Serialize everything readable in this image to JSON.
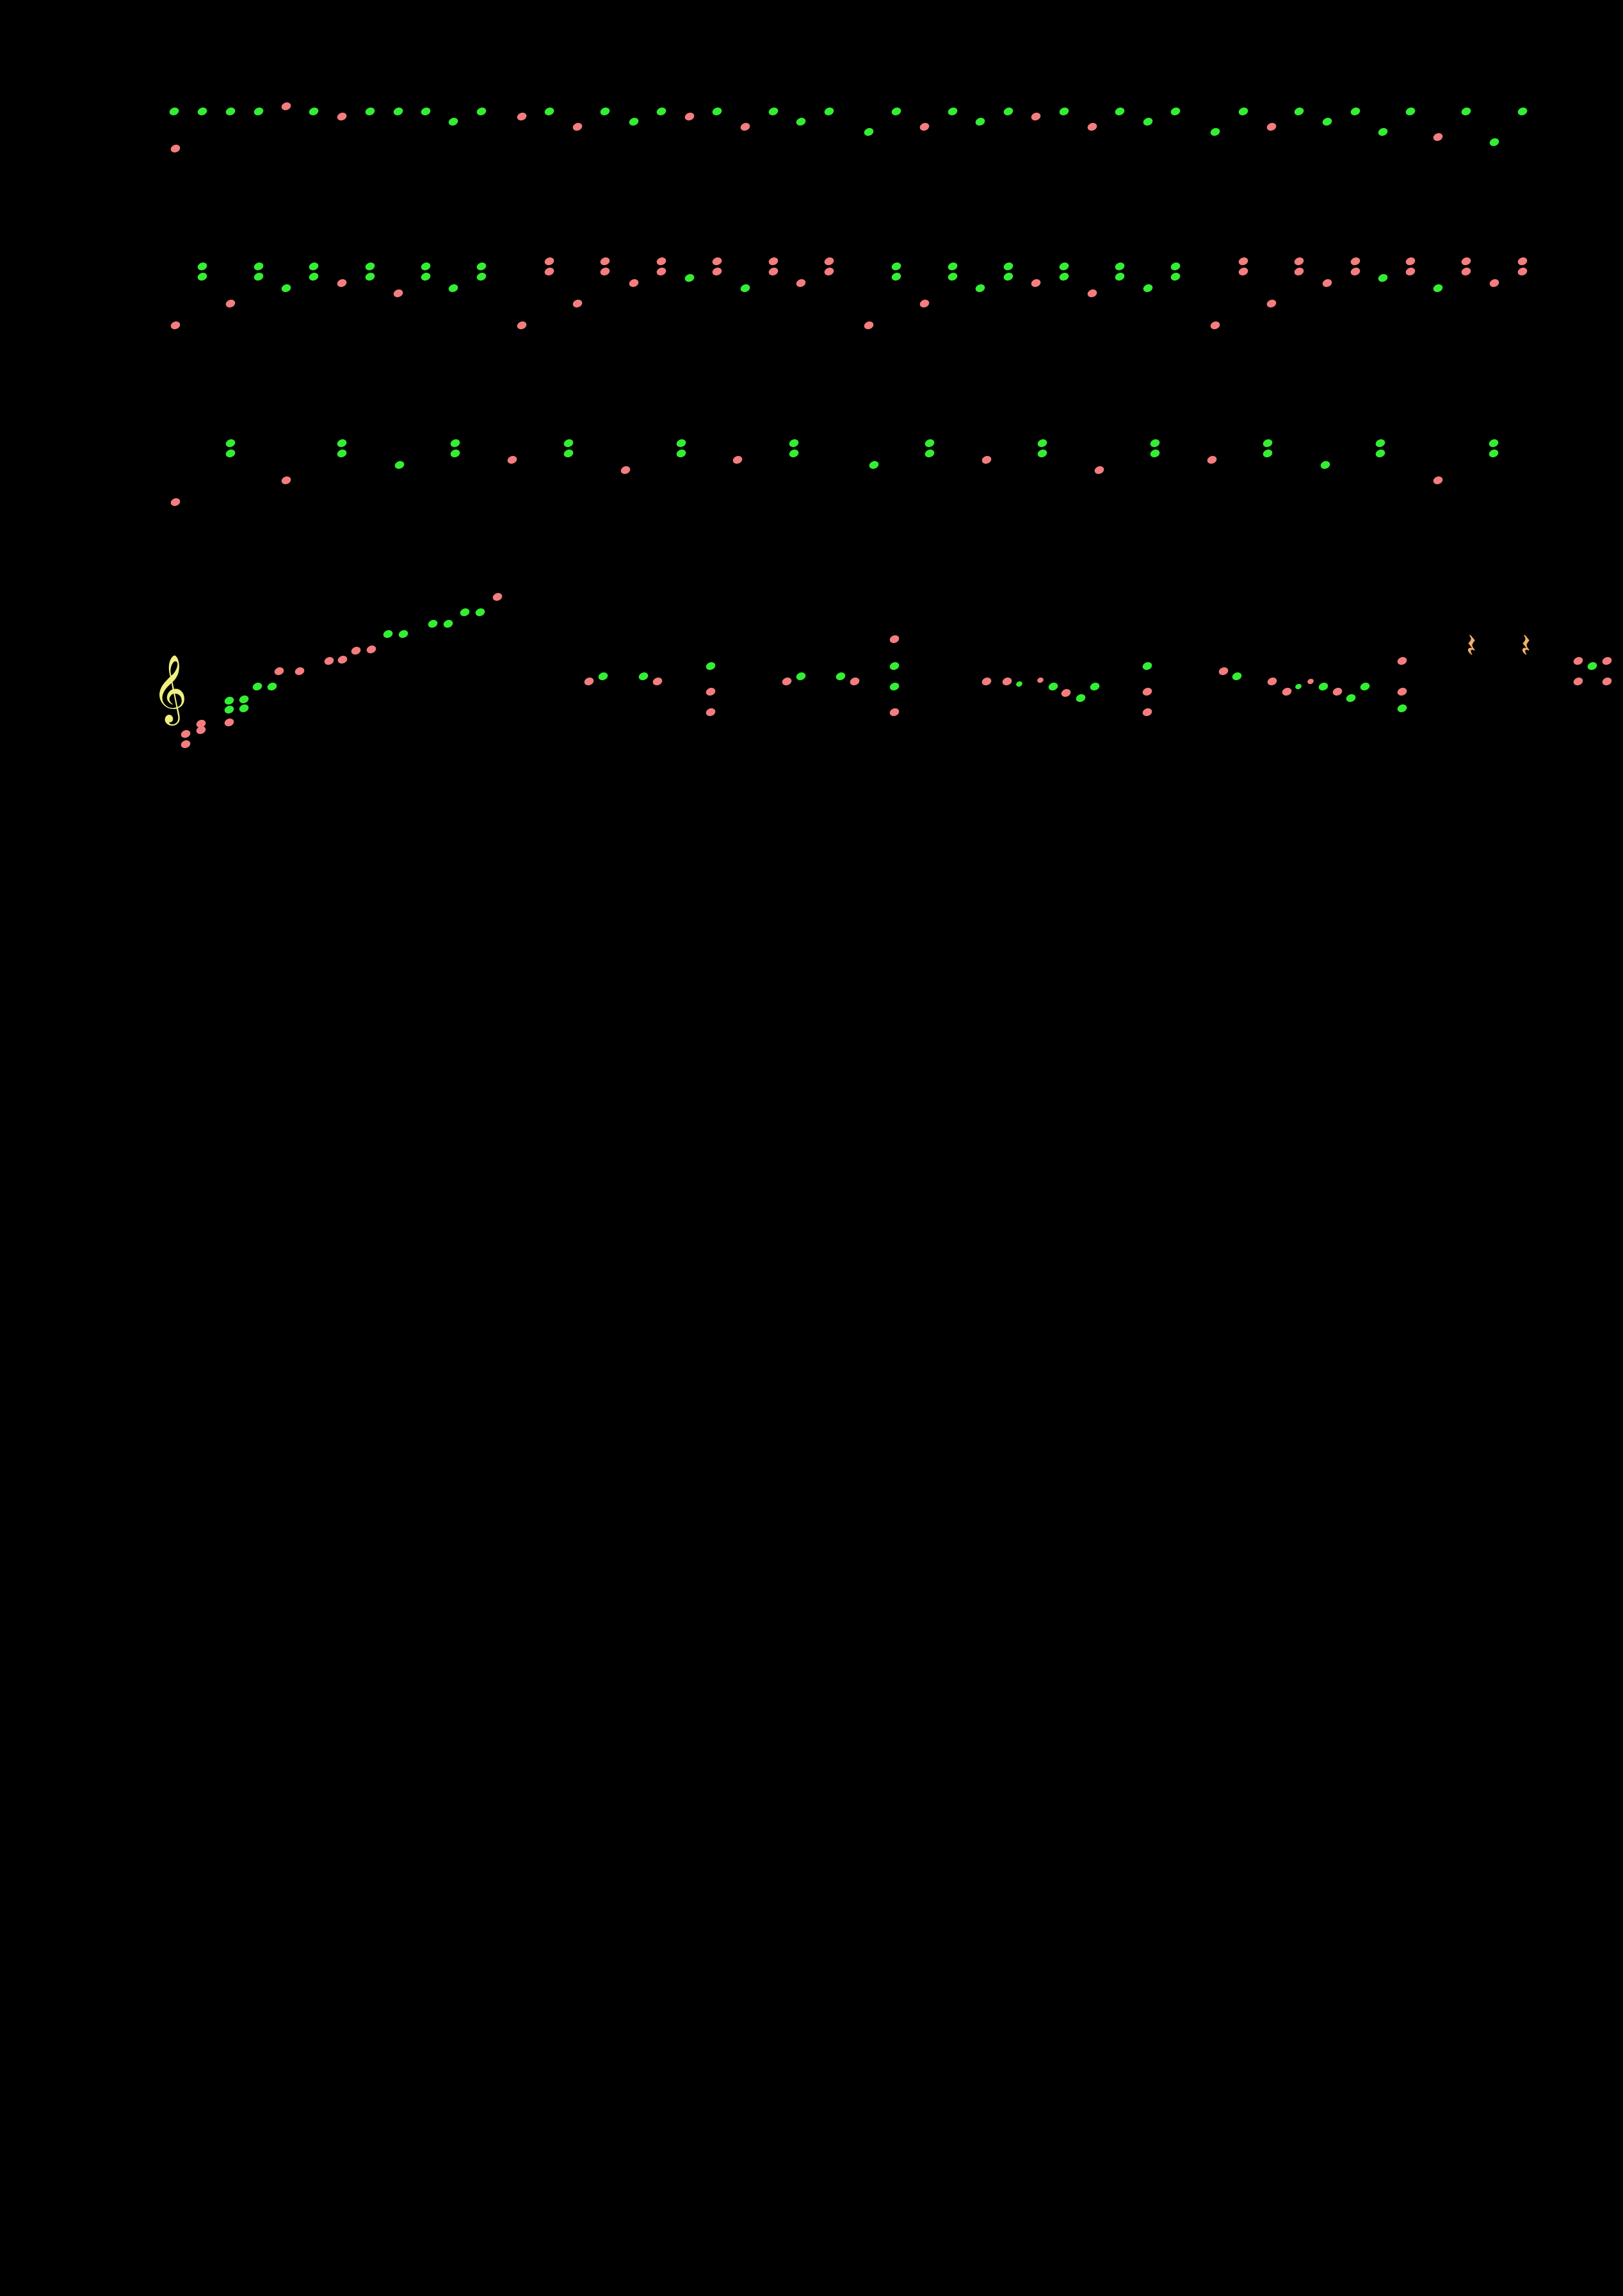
{
  "page": {
    "background": "#000000"
  },
  "colors": {
    "green": "#33ee33",
    "salmon": "#f47d7d",
    "clef": "#f0f080",
    "rest": "#f2b06a"
  },
  "glyphs": {
    "treble_clef": "𝄞",
    "quarter_rest": "𝄽"
  },
  "icons": {
    "clef": "treble-clef-icon",
    "rest": "quarter-rest-icon",
    "note": "notehead-icon"
  },
  "systems": [
    {
      "id": "system-1",
      "note_count": 50
    },
    {
      "id": "system-2",
      "note_count": 80
    },
    {
      "id": "system-3",
      "note_count": 37
    },
    {
      "id": "system-4",
      "note_count": 70,
      "has_clef": true,
      "rest_count": 2
    }
  ]
}
